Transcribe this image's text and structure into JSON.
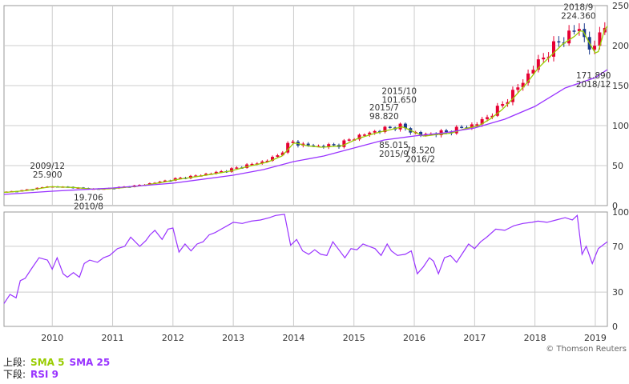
{
  "chart_data": [
    {
      "panel": "upper",
      "type": "candlestick",
      "ylim": [
        0,
        250
      ],
      "y_ticks": [
        0,
        50,
        100,
        150,
        200,
        250
      ],
      "x_tick_labels": [
        "2010",
        "2011",
        "2012",
        "2013",
        "2014",
        "2015",
        "2016",
        "2017",
        "2018",
        "2019"
      ],
      "x_range": [
        2009.2,
        2019.2
      ],
      "grid": true,
      "series": [
        {
          "name": "SMA 5",
          "color": "#99cc00"
        },
        {
          "name": "SMA 25",
          "color": "#9933ff"
        }
      ],
      "price_anchors": {
        "x": [
          2009.2,
          2009.5,
          2009.92,
          2010.3,
          2010.6,
          2010.8,
          2011.0,
          2011.4,
          2011.8,
          2012.0,
          2012.35,
          2012.6,
          2012.9,
          2013.2,
          2013.5,
          2013.75,
          2013.95,
          2014.15,
          2014.4,
          2014.75,
          2015.0,
          2015.3,
          2015.58,
          2015.75,
          2015.95,
          2016.1,
          2016.3,
          2016.55,
          2016.8,
          2017.0,
          2017.2,
          2017.4,
          2017.6,
          2017.8,
          2018.0,
          2018.2,
          2018.4,
          2018.6,
          2018.72,
          2018.85,
          2018.97,
          2019.1,
          2019.2
        ],
        "y": [
          17,
          19,
          24,
          23,
          21,
          21,
          22,
          25,
          30,
          33,
          37,
          40,
          44,
          50,
          55,
          63,
          80,
          76,
          74,
          76,
          85,
          92,
          97,
          100,
          93,
          88,
          90,
          92,
          98,
          101,
          110,
          122,
          138,
          155,
          175,
          190,
          205,
          215,
          224,
          205,
          190,
          225,
          232
        ]
      },
      "sma25_anchors": {
        "x": [
          2009.2,
          2010.0,
          2011.0,
          2012.0,
          2013.0,
          2013.5,
          2014.0,
          2014.5,
          2015.0,
          2015.5,
          2016.0,
          2016.5,
          2017.0,
          2017.5,
          2018.0,
          2018.5,
          2019.0,
          2019.2
        ],
        "y": [
          14,
          18,
          22,
          28,
          38,
          45,
          55,
          62,
          72,
          82,
          87,
          91,
          97,
          108,
          124,
          147,
          160,
          170
        ]
      },
      "annotations": [
        {
          "lines": [
            "2009/12",
            "25.900"
          ],
          "x": 2009.92,
          "y": 25.9,
          "placement": "above"
        },
        {
          "lines": [
            "19.706",
            "2010/8"
          ],
          "x": 2010.6,
          "y": 19.7,
          "placement": "below"
        },
        {
          "lines": [
            "2015/10",
            "101.650"
          ],
          "x": 2015.75,
          "y": 101.65,
          "placement": "above-high"
        },
        {
          "lines": [
            "2015/7",
            "98.820"
          ],
          "x": 2015.5,
          "y": 98.82,
          "placement": "above"
        },
        {
          "lines": [
            "85.015",
            "2015/9"
          ],
          "x": 2015.66,
          "y": 85.0,
          "placement": "below"
        },
        {
          "lines": [
            "78.520",
            "2016/2"
          ],
          "x": 2016.1,
          "y": 78.5,
          "placement": "below"
        },
        {
          "lines": [
            "2018/9",
            "224.360"
          ],
          "x": 2018.72,
          "y": 224.36,
          "placement": "above"
        },
        {
          "lines": [
            "171.890",
            "2018/12"
          ],
          "x": 2018.97,
          "y": 171.89,
          "placement": "below"
        }
      ]
    },
    {
      "panel": "lower",
      "type": "line",
      "ylim": [
        0,
        100
      ],
      "y_ticks": [
        0,
        30,
        70,
        100
      ],
      "series": [
        {
          "name": "RSI 9",
          "color": "#9933ff",
          "x": [
            2009.2,
            2009.3,
            2009.4,
            2009.47,
            2009.55,
            2009.65,
            2009.78,
            2009.92,
            2010.0,
            2010.08,
            2010.18,
            2010.25,
            2010.35,
            2010.45,
            2010.53,
            2010.62,
            2010.75,
            2010.85,
            2010.95,
            2011.08,
            2011.2,
            2011.3,
            2011.45,
            2011.55,
            2011.62,
            2011.7,
            2011.82,
            2011.92,
            2012.0,
            2012.1,
            2012.2,
            2012.3,
            2012.4,
            2012.5,
            2012.6,
            2012.7,
            2012.8,
            2012.9,
            2013.0,
            2013.15,
            2013.3,
            2013.45,
            2013.6,
            2013.7,
            2013.85,
            2013.95,
            2014.05,
            2014.15,
            2014.25,
            2014.35,
            2014.45,
            2014.55,
            2014.65,
            2014.75,
            2014.85,
            2014.95,
            2015.05,
            2015.15,
            2015.25,
            2015.35,
            2015.45,
            2015.55,
            2015.62,
            2015.72,
            2015.85,
            2015.95,
            2016.05,
            2016.15,
            2016.25,
            2016.32,
            2016.4,
            2016.5,
            2016.6,
            2016.7,
            2016.8,
            2016.9,
            2017.0,
            2017.1,
            2017.2,
            2017.35,
            2017.5,
            2017.65,
            2017.8,
            2017.95,
            2018.05,
            2018.2,
            2018.35,
            2018.5,
            2018.62,
            2018.7,
            2018.78,
            2018.85,
            2018.95,
            2019.05,
            2019.15,
            2019.2
          ],
          "y": [
            20,
            28,
            25,
            40,
            42,
            50,
            60,
            58,
            50,
            60,
            46,
            43,
            47,
            43,
            55,
            58,
            56,
            60,
            62,
            68,
            70,
            78,
            70,
            75,
            80,
            84,
            76,
            85,
            86,
            65,
            72,
            66,
            72,
            74,
            80,
            82,
            85,
            88,
            91,
            90,
            92,
            93,
            95,
            97,
            98,
            71,
            76,
            66,
            63,
            67,
            63,
            62,
            74,
            67,
            60,
            68,
            67,
            72,
            70,
            68,
            62,
            72,
            66,
            62,
            63,
            66,
            46,
            52,
            60,
            57,
            46,
            60,
            62,
            56,
            64,
            72,
            68,
            74,
            78,
            85,
            84,
            88,
            90,
            91,
            92,
            91,
            93,
            95,
            93,
            97,
            63,
            70,
            55,
            68,
            72,
            74
          ]
        }
      ]
    }
  ],
  "legend": {
    "upper_label": "上段:",
    "sma5_label": "SMA 5",
    "sma25_label": "SMA 25",
    "lower_label": "下段:",
    "rsi_label": "RSI 9"
  },
  "colors": {
    "up_candle": "#e60033",
    "down_candle": "#1a3a8c",
    "grid": "#cccccc",
    "frame": "#999999",
    "axis_text": "#333333",
    "annotation_text": "#333333"
  },
  "attribution": "© Thomson Reuters"
}
